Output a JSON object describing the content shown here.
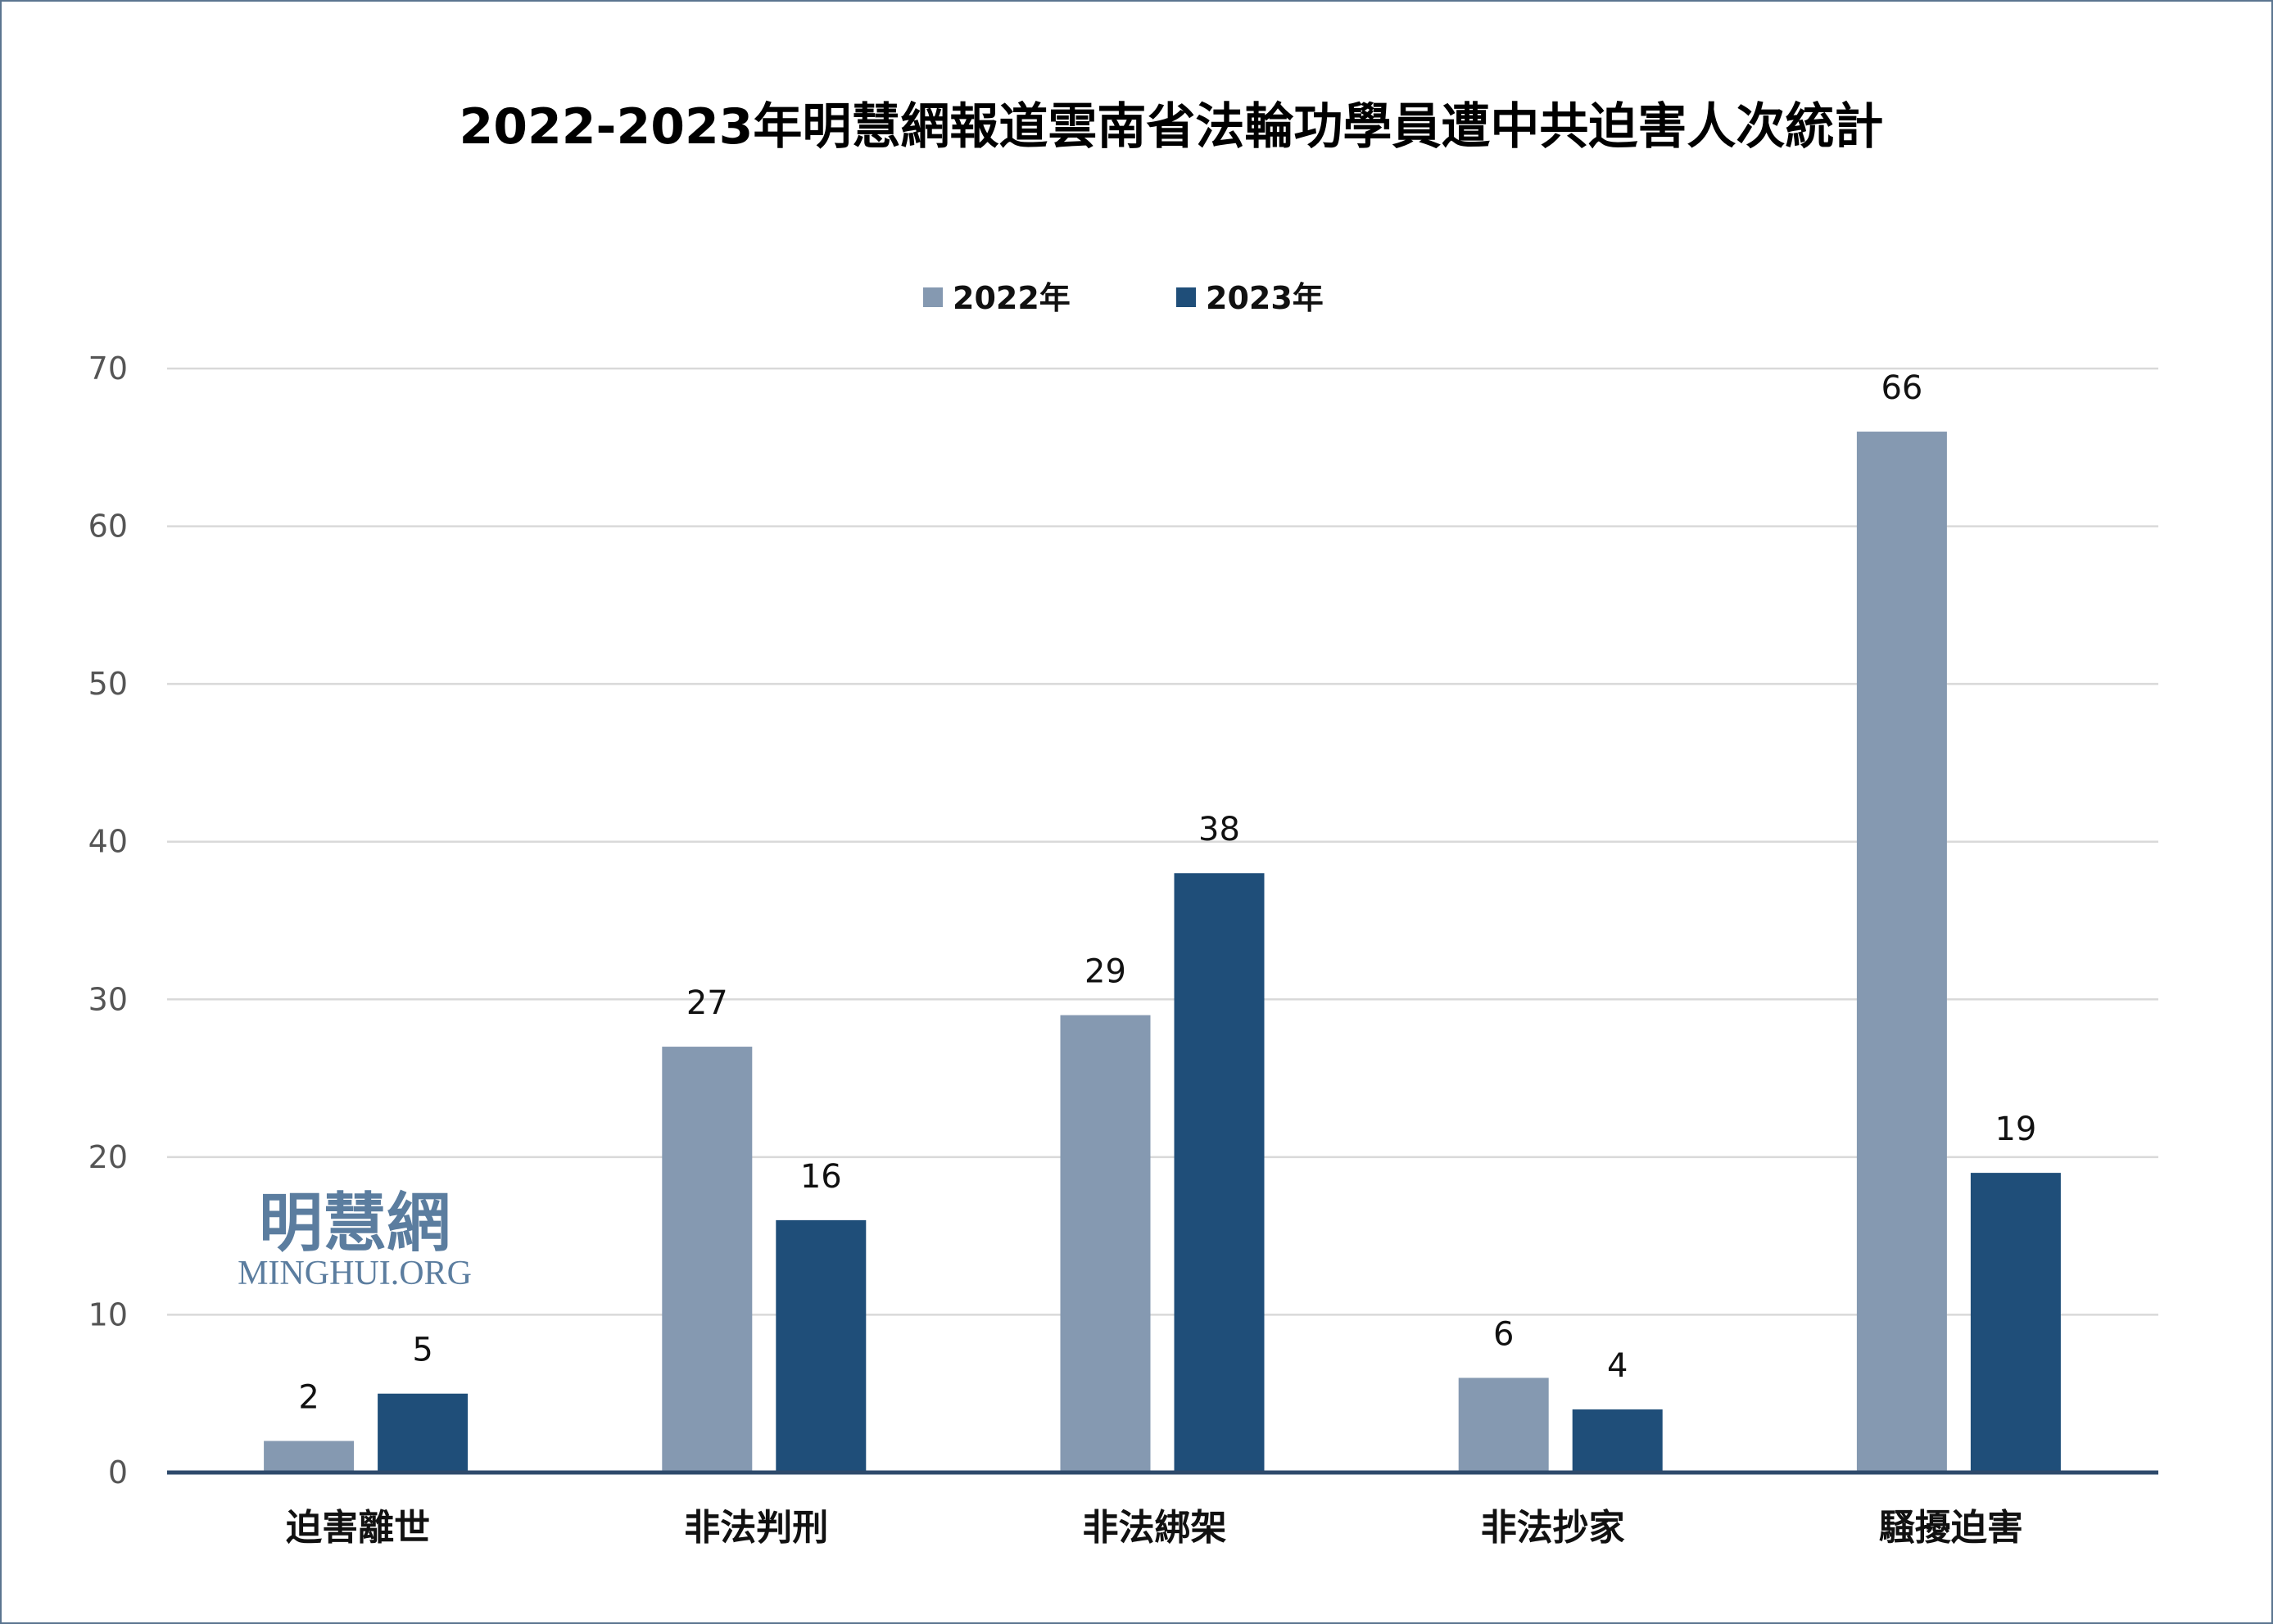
{
  "chart_data": {
    "type": "bar",
    "title": "2022-2023年明慧網報道雲南省法輪功學員遭中共迫害人次統計",
    "categories": [
      "迫害離世",
      "非法判刑",
      "非法綁架",
      "非法抄家",
      "騷擾迫害"
    ],
    "series": [
      {
        "name": "2022年",
        "values": [
          2,
          27,
          29,
          6,
          66
        ],
        "color": "#8599b1"
      },
      {
        "name": "2023年",
        "values": [
          5,
          16,
          38,
          4,
          19
        ],
        "color": "#1f4e79"
      }
    ],
    "ylim": [
      0,
      70
    ],
    "yticks": [
      0,
      10,
      20,
      30,
      40,
      50,
      60,
      70
    ],
    "xlabel": "",
    "ylabel": "",
    "grid": true,
    "legend": "top-center",
    "data_labels": true
  },
  "watermark": {
    "cn": "明慧網",
    "en": "MINGHUI.ORG"
  },
  "colors": {
    "axis": "#2e4a6b",
    "grid": "#d9d9d9",
    "logo": "#5b7d9f"
  }
}
